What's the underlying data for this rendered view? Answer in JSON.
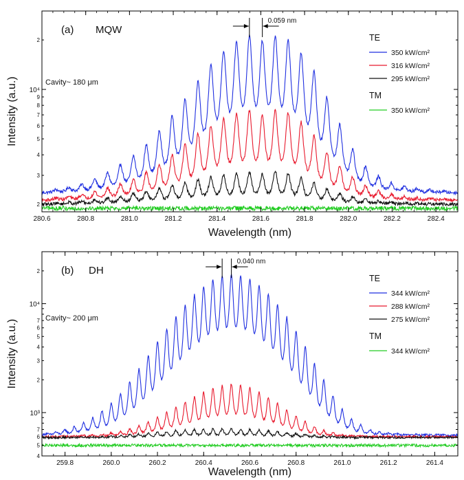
{
  "chart_data": [
    {
      "type": "line",
      "panel_label": "(a)",
      "structure_label": "MQW",
      "cavity_text": "Cavity~ 180 μm",
      "spacing_annotation": "0.059 nm",
      "spacing_marks": [
        281.548,
        281.607
      ],
      "xlabel": "Wavelength (nm)",
      "ylabel": "Intensity (a.u.)",
      "xlim": [
        280.6,
        282.5
      ],
      "ylim": [
        1800,
        30000
      ],
      "y_scale": "log",
      "x_ticks": [
        280.6,
        280.8,
        281.0,
        281.2,
        281.4,
        281.6,
        281.8,
        282.0,
        282.2,
        282.4
      ],
      "x_tick_labels": [
        "280.6",
        "280.8",
        "281.0",
        "281.2",
        "281.4",
        "281.6",
        "281.8",
        "282.0",
        "282.2",
        "282.4"
      ],
      "y_major_ticks": [
        {
          "value": 10000,
          "label": "10⁴"
        }
      ],
      "y_minor_labels": [
        {
          "value": 2000,
          "label": "2"
        },
        {
          "value": 3000,
          "label": "3"
        },
        {
          "value": 4000,
          "label": "4"
        },
        {
          "value": 5000,
          "label": "5"
        },
        {
          "value": 6000,
          "label": "6"
        },
        {
          "value": 7000,
          "label": "7"
        },
        {
          "value": 8000,
          "label": "8"
        },
        {
          "value": 9000,
          "label": "9"
        },
        {
          "value": 20000,
          "label": "2"
        }
      ],
      "legend": {
        "groups": [
          {
            "heading": "TE",
            "entries": [
              {
                "label": "350 kW/cm²",
                "color": "#1f2fe0"
              },
              {
                "label": "316 kW/cm²",
                "color": "#e8182c"
              },
              {
                "label": "295 kW/cm²",
                "color": "#111111"
              }
            ]
          },
          {
            "heading": "TM",
            "entries": [
              {
                "label": "350 kW/cm²",
                "color": "#22cc22"
              }
            ]
          }
        ],
        "placement": "right"
      },
      "mode_spacing_nm": 0.059,
      "peak_center_nm": 281.607,
      "series": [
        {
          "name": "350 kW/cm²",
          "mode": "TE",
          "color": "#1f2fe0",
          "baseline": 2350,
          "peak_max": 19800,
          "envelope_sigma_nm": 0.25,
          "x": [
            280.664,
            280.723,
            280.782,
            280.841,
            280.9,
            280.959,
            281.018,
            281.077,
            281.136,
            281.195,
            281.254,
            281.313,
            281.372,
            281.43,
            281.489,
            281.548,
            281.607,
            281.666,
            281.725,
            281.784,
            281.843,
            281.902,
            281.961,
            282.02,
            282.079,
            282.138,
            282.197,
            282.256,
            282.315,
            282.374,
            282.433
          ],
          "values": [
            2450,
            2520,
            2620,
            2800,
            3050,
            3400,
            3800,
            4400,
            5300,
            6500,
            8200,
            10500,
            13200,
            16000,
            18000,
            19800,
            18300,
            19500,
            18500,
            15500,
            12000,
            8400,
            5800,
            4100,
            3300,
            2900,
            2650,
            2550,
            2480,
            2430,
            2400
          ]
        },
        {
          "name": "316 kW/cm²",
          "mode": "TE",
          "color": "#e8182c",
          "baseline": 2120,
          "peak_max": 7100,
          "envelope_sigma_nm": 0.25,
          "x": [
            280.664,
            280.723,
            280.782,
            280.841,
            280.9,
            280.959,
            281.018,
            281.077,
            281.136,
            281.195,
            281.254,
            281.313,
            281.372,
            281.43,
            281.489,
            281.548,
            281.607,
            281.666,
            281.725,
            281.784,
            281.843,
            281.902,
            281.961,
            282.02,
            282.079,
            282.138,
            282.197,
            282.256,
            282.315,
            282.374,
            282.433
          ],
          "values": [
            2180,
            2220,
            2280,
            2370,
            2480,
            2620,
            2800,
            3050,
            3400,
            3850,
            4400,
            5100,
            5700,
            6300,
            6700,
            7000,
            6600,
            7100,
            6800,
            6000,
            5000,
            4000,
            3300,
            2850,
            2550,
            2380,
            2280,
            2220,
            2180,
            2160,
            2150
          ]
        },
        {
          "name": "295 kW/cm²",
          "mode": "TE",
          "color": "#111111",
          "baseline": 2000,
          "peak_max": 3100,
          "envelope_sigma_nm": 0.25,
          "x": [
            280.664,
            280.723,
            280.782,
            280.841,
            280.9,
            280.959,
            281.018,
            281.077,
            281.136,
            281.195,
            281.254,
            281.313,
            281.372,
            281.43,
            281.489,
            281.548,
            281.607,
            281.666,
            281.725,
            281.784,
            281.843,
            281.902,
            281.961,
            282.02,
            282.079,
            282.138,
            282.197,
            282.256,
            282.315,
            282.374,
            282.433
          ],
          "values": [
            2030,
            2050,
            2080,
            2120,
            2170,
            2230,
            2300,
            2380,
            2470,
            2560,
            2660,
            2760,
            2850,
            2930,
            2980,
            3050,
            2960,
            3100,
            3000,
            2850,
            2650,
            2450,
            2300,
            2200,
            2130,
            2080,
            2050,
            2030,
            2020,
            2010,
            2005
          ]
        },
        {
          "name": "350 kW/cm²",
          "mode": "TM",
          "color": "#22cc22",
          "baseline": 1890,
          "peak_max": 1890,
          "envelope_sigma_nm": 0.25,
          "x": [
            280.6,
            282.5
          ],
          "values": [
            1890,
            1890
          ]
        }
      ]
    },
    {
      "type": "line",
      "panel_label": "(b)",
      "structure_label": "DH",
      "cavity_text": "Cavity~ 200 μm",
      "spacing_annotation": "0.040 nm",
      "spacing_marks": [
        260.48,
        260.52
      ],
      "xlabel": "Wavelength (nm)",
      "ylabel": "Intensity (a.u.)",
      "xlim": [
        259.7,
        261.5
      ],
      "ylim": [
        400,
        30000
      ],
      "y_scale": "log",
      "x_ticks": [
        259.8,
        260.0,
        260.2,
        260.4,
        260.6,
        260.8,
        261.0,
        261.2,
        261.4
      ],
      "x_tick_labels": [
        "259.8",
        "260.0",
        "260.2",
        "260.4",
        "260.6",
        "260.8",
        "261.0",
        "261.2",
        "261.4"
      ],
      "y_major_ticks": [
        {
          "value": 1000,
          "label": "10³"
        },
        {
          "value": 10000,
          "label": "10⁴"
        }
      ],
      "y_minor_labels": [
        {
          "value": 400,
          "label": "4"
        },
        {
          "value": 500,
          "label": "5"
        },
        {
          "value": 600,
          "label": "6"
        },
        {
          "value": 700,
          "label": "7"
        },
        {
          "value": 2000,
          "label": "2"
        },
        {
          "value": 3000,
          "label": "3"
        },
        {
          "value": 4000,
          "label": "4"
        },
        {
          "value": 5000,
          "label": "5"
        },
        {
          "value": 6000,
          "label": "6"
        },
        {
          "value": 7000,
          "label": "7"
        },
        {
          "value": 20000,
          "label": "2"
        }
      ],
      "legend": {
        "groups": [
          {
            "heading": "TE",
            "entries": [
              {
                "label": "344 kW/cm²",
                "color": "#1f2fe0"
              },
              {
                "label": "288 kW/cm²",
                "color": "#e8182c"
              },
              {
                "label": "275 kW/cm²",
                "color": "#111111"
              }
            ]
          },
          {
            "heading": "TM",
            "entries": [
              {
                "label": "344 kW/cm²",
                "color": "#22cc22"
              }
            ]
          }
        ],
        "placement": "right"
      },
      "mode_spacing_nm": 0.04,
      "peak_center_nm": 260.52,
      "series": [
        {
          "name": "344 kW/cm²",
          "mode": "TE",
          "color": "#1f2fe0",
          "baseline": 620,
          "peak_max": 17000,
          "envelope_sigma_nm": 0.19,
          "x": [
            259.72,
            259.76,
            259.8,
            259.84,
            259.88,
            259.92,
            259.96,
            260.0,
            260.04,
            260.08,
            260.12,
            260.16,
            260.2,
            260.24,
            260.28,
            260.32,
            260.36,
            260.4,
            260.44,
            260.48,
            260.52,
            260.56,
            260.6,
            260.64,
            260.68,
            260.72,
            260.76,
            260.8,
            260.84,
            260.88,
            260.92,
            260.96,
            261.0,
            261.04,
            261.08,
            261.12,
            261.16,
            261.2,
            261.24,
            261.28,
            261.32,
            261.36,
            261.4,
            261.44,
            261.48
          ],
          "values": [
            640,
            660,
            690,
            730,
            790,
            870,
            990,
            1160,
            1420,
            1800,
            2350,
            3100,
            4100,
            5400,
            7000,
            8900,
            11000,
            13200,
            15200,
            16500,
            17000,
            16600,
            15500,
            13600,
            11300,
            9000,
            6900,
            5100,
            3700,
            2600,
            1850,
            1350,
            1030,
            850,
            750,
            690,
            660,
            645,
            635,
            630,
            628,
            626,
            625,
            624,
            623
          ]
        },
        {
          "name": "288 kW/cm²",
          "mode": "TE",
          "color": "#e8182c",
          "baseline": 600,
          "peak_max": 1750,
          "envelope_sigma_nm": 0.19,
          "x": [
            259.72,
            259.76,
            259.8,
            259.84,
            259.88,
            259.92,
            259.96,
            260.0,
            260.04,
            260.08,
            260.12,
            260.16,
            260.2,
            260.24,
            260.28,
            260.32,
            260.36,
            260.4,
            260.44,
            260.48,
            260.52,
            260.56,
            260.6,
            260.64,
            260.68,
            260.72,
            260.76,
            260.8,
            260.84,
            260.88,
            260.92,
            260.96,
            261.0,
            261.04,
            261.08,
            261.12,
            261.16,
            261.2,
            261.24,
            261.28,
            261.32,
            261.36,
            261.4,
            261.44,
            261.48
          ],
          "values": [
            602,
            604,
            607,
            611,
            616,
            623,
            633,
            648,
            670,
            700,
            745,
            805,
            880,
            975,
            1080,
            1200,
            1320,
            1450,
            1570,
            1660,
            1750,
            1700,
            1600,
            1470,
            1320,
            1170,
            1030,
            910,
            810,
            730,
            680,
            645,
            625,
            614,
            608,
            604,
            602,
            601,
            600,
            600,
            600,
            600,
            600,
            600,
            600
          ]
        },
        {
          "name": "275 kW/cm²",
          "mode": "TE",
          "color": "#111111",
          "baseline": 590,
          "peak_max": 700,
          "envelope_sigma_nm": 0.19,
          "x": [
            259.72,
            259.76,
            259.8,
            259.84,
            259.88,
            259.92,
            259.96,
            260.0,
            260.04,
            260.08,
            260.12,
            260.16,
            260.2,
            260.24,
            260.28,
            260.32,
            260.36,
            260.4,
            260.44,
            260.48,
            260.52,
            260.56,
            260.6,
            260.64,
            260.68,
            260.72,
            260.76,
            260.8,
            260.84,
            260.88,
            260.92,
            260.96,
            261.0,
            261.04,
            261.08,
            261.12,
            261.16,
            261.2,
            261.24,
            261.28,
            261.32,
            261.36,
            261.4,
            261.44,
            261.48
          ],
          "values": [
            590,
            591,
            592,
            594,
            596,
            598,
            602,
            606,
            612,
            620,
            630,
            642,
            654,
            666,
            677,
            686,
            693,
            698,
            700,
            700,
            700,
            698,
            694,
            686,
            676,
            664,
            651,
            638,
            626,
            616,
            608,
            602,
            597,
            594,
            592,
            591,
            590,
            590,
            590,
            590,
            590,
            590,
            590,
            590,
            590
          ]
        },
        {
          "name": "344 kW/cm²",
          "mode": "TM",
          "color": "#22cc22",
          "baseline": 500,
          "peak_max": 500,
          "envelope_sigma_nm": 0.19,
          "x": [
            259.7,
            261.5
          ],
          "values": [
            500,
            500
          ]
        }
      ]
    }
  ]
}
